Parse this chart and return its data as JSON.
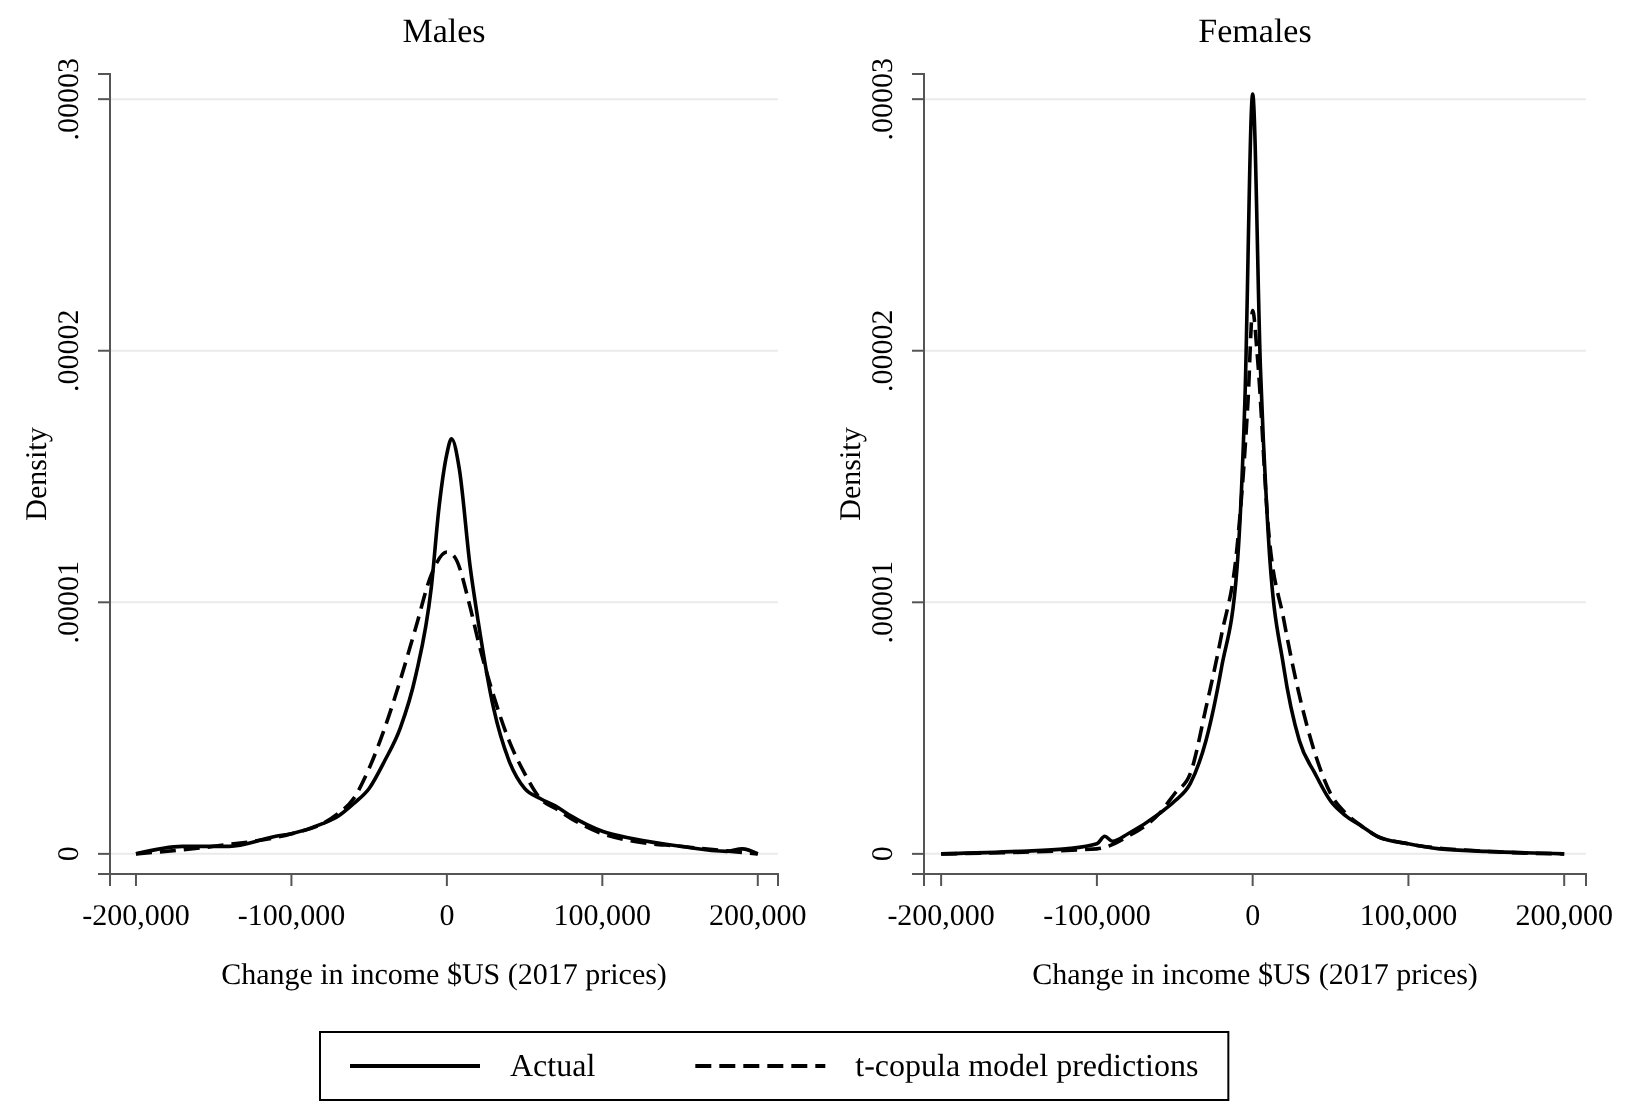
{
  "chart_data": [
    {
      "type": "line",
      "title": "Males",
      "xlabel": "Change in income $US (2017 prices)",
      "ylabel": "Density",
      "xlim": [
        -216700,
        213000
      ],
      "ylim": [
        -8e-07,
        3.1e-05
      ],
      "xticks": [
        {
          "value": -200000,
          "label": "-200,000"
        },
        {
          "value": -100000,
          "label": "-100,000"
        },
        0,
        {
          "value": 100000,
          "label": "100,000"
        },
        {
          "value": 200000,
          "label": "200,000"
        }
      ],
      "yticks": [
        0,
        {
          "value": 1e-05,
          "label": ".00001"
        },
        {
          "value": 2e-05,
          "label": ".00002"
        },
        {
          "value": 3e-05,
          "label": ".00003"
        }
      ],
      "grid": "y",
      "legend": "bottom",
      "series": [
        {
          "name": "Actual",
          "color": "#000000",
          "line_style": "solid",
          "x": [
            -200000,
            -170000,
            -140000,
            -110000,
            -100000,
            -80000,
            -70000,
            -60000,
            -50000,
            -40000,
            -30000,
            -20000,
            -10000,
            -5000,
            0,
            3000,
            8000,
            15000,
            20000,
            30000,
            40000,
            50000,
            60000,
            70000,
            80000,
            100000,
            120000,
            150000,
            180000,
            190000,
            200000
          ],
          "values": [
            0,
            3e-07,
            3e-07,
            7e-07,
            8e-07,
            1.2e-06,
            1.5e-06,
            2e-06,
            2.6e-06,
            3.7e-06,
            5e-06,
            7.1e-06,
            1.06e-05,
            1.38e-05,
            1.59e-05,
            1.65e-05,
            1.53e-05,
            1.14e-05,
            9.3e-06,
            5.8e-06,
            3.7e-06,
            2.6e-06,
            2.2e-06,
            1.9e-06,
            1.5e-06,
            9e-07,
            6e-07,
            3e-07,
            1e-07,
            2e-07,
            0
          ]
        },
        {
          "name": "t-copula model predictions",
          "color": "#000000",
          "line_style": "dashed",
          "x": [
            -200000,
            -150000,
            -100000,
            -80000,
            -70000,
            -60000,
            -50000,
            -40000,
            -30000,
            -20000,
            -10000,
            0,
            5000,
            15000,
            20000,
            30000,
            40000,
            50000,
            60000,
            70000,
            80000,
            100000,
            120000,
            150000,
            200000
          ],
          "values": [
            0,
            3e-07,
            8e-07,
            1.2e-06,
            1.6e-06,
            2.2e-06,
            3.4e-06,
            5e-06,
            6.9e-06,
            9e-06,
            1.11e-05,
            1.2e-05,
            1.18e-05,
            9.8e-06,
            8.5e-06,
            6.3e-06,
            4.5e-06,
            3.2e-06,
            2.2e-06,
            1.8e-06,
            1.4e-06,
            8e-07,
            5e-07,
            3e-07,
            0
          ]
        }
      ]
    },
    {
      "type": "line",
      "title": "Females",
      "xlabel": "Change in income $US (2017 prices)",
      "ylabel": "Density",
      "xlim": [
        -211000,
        214000
      ],
      "ylim": [
        -8e-07,
        3.1e-05
      ],
      "xticks": [
        {
          "value": -200000,
          "label": "-200,000"
        },
        {
          "value": -100000,
          "label": "-100,000"
        },
        0,
        {
          "value": 100000,
          "label": "100,000"
        },
        {
          "value": 200000,
          "label": "200,000"
        }
      ],
      "yticks": [
        0,
        {
          "value": 1e-05,
          "label": ".00001"
        },
        {
          "value": 2e-05,
          "label": ".00002"
        },
        {
          "value": 3e-05,
          "label": ".00003"
        }
      ],
      "grid": "y",
      "series": [
        {
          "color": "#000000",
          "line_style": "solid",
          "x": [
            -200000,
            -150000,
            -120000,
            -100000,
            -95000,
            -90000,
            -80000,
            -60000,
            -50000,
            -40000,
            -30000,
            -20000,
            -10000,
            -5000,
            0,
            5000,
            10000,
            20000,
            30000,
            40000,
            50000,
            60000,
            70000,
            80000,
            100000,
            120000,
            150000,
            200000
          ],
          "values": [
            0,
            1e-07,
            2e-07,
            4e-07,
            7e-07,
            5e-07,
            8e-07,
            1.6e-06,
            2.1e-06,
            2.8e-06,
            4.5e-06,
            7.4e-06,
            1.14e-05,
            1.8e-05,
            3.02e-05,
            1.93e-05,
            1.27e-05,
            7.4e-06,
            4.5e-06,
            3.2e-06,
            2.1e-06,
            1.5e-06,
            1.1e-06,
            7e-07,
            4e-07,
            2e-07,
            1e-07,
            0
          ]
        },
        {
          "color": "#000000",
          "line_style": "dashed",
          "x": [
            -200000,
            -100000,
            -80000,
            -60000,
            -50000,
            -40000,
            -30000,
            -20000,
            -10000,
            -3000,
            0,
            3000,
            10000,
            20000,
            30000,
            40000,
            50000,
            60000,
            70000,
            80000,
            100000,
            150000,
            200000
          ],
          "values": [
            0,
            2e-07,
            7e-07,
            1.6e-06,
            2.4e-06,
            3.2e-06,
            5.8e-06,
            8.7e-06,
            1.22e-05,
            1.8e-05,
            2.16e-05,
            1.98e-05,
            1.3e-05,
            9.3e-06,
            6.3e-06,
            4e-06,
            2.4e-06,
            1.6e-06,
            1.1e-06,
            7e-07,
            4e-07,
            1e-07,
            0
          ]
        }
      ]
    }
  ]
}
